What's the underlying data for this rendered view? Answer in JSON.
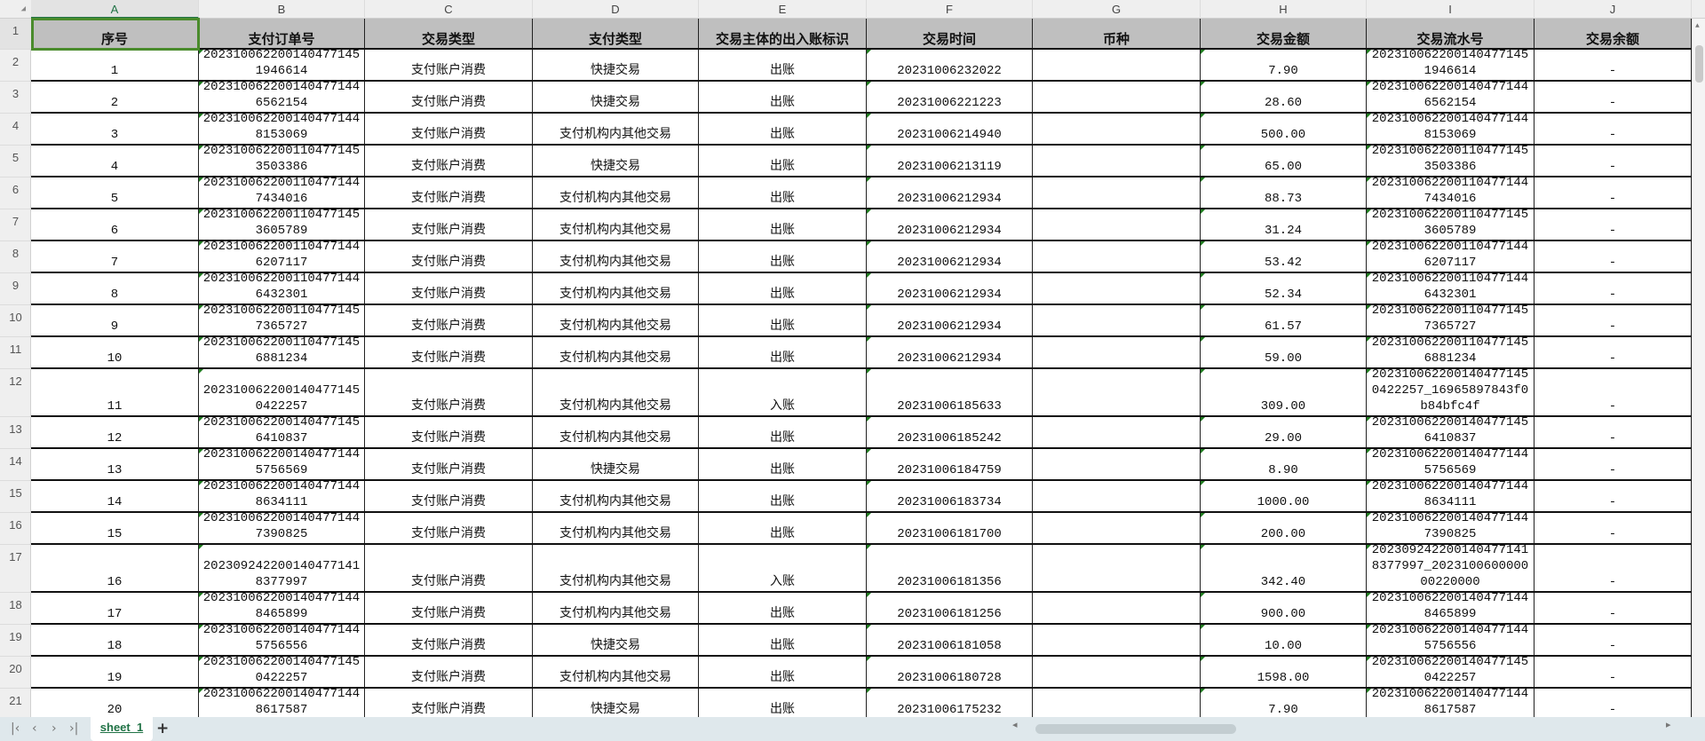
{
  "columns": [
    "A",
    "B",
    "C",
    "D",
    "E",
    "F",
    "G",
    "H",
    "I",
    "J"
  ],
  "selected_cell": "A1",
  "headers": [
    "序号",
    "支付订单号",
    "交易类型",
    "支付类型",
    "交易主体的出入账标识",
    "交易时间",
    "币种",
    "交易金额",
    "交易流水号",
    "交易余额"
  ],
  "rows": [
    [
      "1",
      "20231006220014047714519​46614",
      "支付账户消费",
      "快捷交易",
      "出账",
      "20231006232022",
      "",
      "7.90",
      "20231006220014047714519​46614",
      "-"
    ],
    [
      "2",
      "202310062200140477144656​2154",
      "支付账户消费",
      "快捷交易",
      "出账",
      "20231006221223",
      "",
      "28.60",
      "202310062200140477144656​2154",
      "-"
    ],
    [
      "3",
      "202310062200140477144815​3069",
      "支付账户消费",
      "支付机构内其他交易",
      "出账",
      "20231006214940",
      "",
      "500.00",
      "202310062200140477144815​3069",
      "-"
    ],
    [
      "4",
      "202310062200110477145350​3386",
      "支付账户消费",
      "快捷交易",
      "出账",
      "20231006213119",
      "",
      "65.00",
      "202310062200110477145350​3386",
      "-"
    ],
    [
      "5",
      "202310062200110477144743​4016",
      "支付账户消费",
      "支付机构内其他交易",
      "出账",
      "20231006212934",
      "",
      "88.73",
      "202310062200110477144743​4016",
      "-"
    ],
    [
      "6",
      "202310062200110477145360​5789",
      "支付账户消费",
      "支付机构内其他交易",
      "出账",
      "20231006212934",
      "",
      "31.24",
      "202310062200110477145360​5789",
      "-"
    ],
    [
      "7",
      "202310062200110477144620​7117",
      "支付账户消费",
      "支付机构内其他交易",
      "出账",
      "20231006212934",
      "",
      "53.42",
      "202310062200110477144620​7117",
      "-"
    ],
    [
      "8",
      "202310062200110477144643​2301",
      "支付账户消费",
      "支付机构内其他交易",
      "出账",
      "20231006212934",
      "",
      "52.34",
      "202310062200110477144643​2301",
      "-"
    ],
    [
      "9",
      "202310062200110477145736​5727",
      "支付账户消费",
      "支付机构内其他交易",
      "出账",
      "20231006212934",
      "",
      "61.57",
      "202310062200110477145736​5727",
      "-"
    ],
    [
      "10",
      "202310062200110477145688​1234",
      "支付账户消费",
      "支付机构内其他交易",
      "出账",
      "20231006212934",
      "",
      "59.00",
      "202310062200110477145688​1234",
      "-"
    ],
    [
      "11",
      "202310062200140477145042​2257",
      "支付账户消费",
      "支付机构内其他交易",
      "入账",
      "20231006185633",
      "",
      "309.00",
      "202310062200140477145042​2257_16965897843f0b8​4bfc4f",
      "-"
    ],
    [
      "12",
      "202310062200140477145641​0837",
      "支付账户消费",
      "支付机构内其他交易",
      "出账",
      "20231006185242",
      "",
      "29.00",
      "202310062200140477145641​0837",
      "-"
    ],
    [
      "13",
      "202310062200140477144575​6569",
      "支付账户消费",
      "快捷交易",
      "出账",
      "20231006184759",
      "",
      "8.90",
      "202310062200140477144575​6569",
      "-"
    ],
    [
      "14",
      "202310062200140477144863​4111",
      "支付账户消费",
      "支付机构内其他交易",
      "出账",
      "20231006183734",
      "",
      "1000.00",
      "202310062200140477144863​4111",
      "-"
    ],
    [
      "15",
      "202310062200140477144739​0825",
      "支付账户消费",
      "支付机构内其他交易",
      "出账",
      "20231006181700",
      "",
      "200.00",
      "202310062200140477144739​0825",
      "-"
    ],
    [
      "16",
      "202309242200140477141837​7997",
      "支付账户消费",
      "支付机构内其他交易",
      "入账",
      "20231006181356",
      "",
      "342.40",
      "202309242200140477141837​7997_20231006000000​0220000",
      "-"
    ],
    [
      "17",
      "202310062200140477144846​5899",
      "支付账户消费",
      "支付机构内其他交易",
      "出账",
      "20231006181256",
      "",
      "900.00",
      "202310062200140477144846​5899",
      "-"
    ],
    [
      "18",
      "202310062200140477144575​6556",
      "支付账户消费",
      "快捷交易",
      "出账",
      "20231006181058",
      "",
      "10.00",
      "202310062200140477144575​6556",
      "-"
    ],
    [
      "19",
      "202310062200140477145042​2257",
      "支付账户消费",
      "支付机构内其他交易",
      "出账",
      "20231006180728",
      "",
      "1598.00",
      "202310062200140477145042​2257",
      "-"
    ],
    [
      "20",
      "202310062200140477144861​7587",
      "支付账户消费",
      "快捷交易",
      "出账",
      "20231006175232",
      "",
      "7.90",
      "202310062200140477144861​7587",
      "-"
    ]
  ],
  "sheet_tab": "sheet_1",
  "add_sheet": "+",
  "colors": {
    "header_fill": "#bfbfbf",
    "selection": "#4a8b2c",
    "tab_text": "#217346",
    "bottom_bar": "#dfe8ec"
  }
}
